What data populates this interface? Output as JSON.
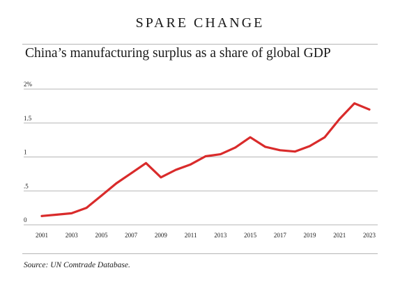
{
  "header": {
    "kicker": "SPARE CHANGE",
    "title": "China’s manufacturing surplus as a share of global GDP"
  },
  "footer": {
    "source": "Source: UN Comtrade Database."
  },
  "colors": {
    "line": "#d92b2b",
    "grid": "#b5b5b5",
    "text": "#1a1a1a"
  },
  "chart_data": {
    "type": "line",
    "title": "China’s manufacturing surplus as a share of global GDP",
    "xlabel": "",
    "ylabel": "",
    "x": [
      2001,
      2002,
      2003,
      2004,
      2005,
      2006,
      2007,
      2008,
      2009,
      2010,
      2011,
      2012,
      2013,
      2014,
      2015,
      2016,
      2017,
      2018,
      2019,
      2020,
      2021,
      2022,
      2023
    ],
    "series": [
      {
        "values": [
          0.13,
          0.15,
          0.17,
          0.25,
          0.43,
          0.61,
          0.76,
          0.91,
          0.7,
          0.81,
          0.89,
          1.01,
          1.04,
          1.14,
          1.29,
          1.15,
          1.1,
          1.08,
          1.16,
          1.29,
          1.56,
          1.79,
          1.7
        ]
      }
    ],
    "xlim": [
      2001,
      2023
    ],
    "ylim": [
      0,
      2
    ],
    "yticks": [
      0,
      0.5,
      1,
      1.5,
      2
    ],
    "ytick_labels": [
      "0",
      ".5",
      "1",
      "1.5",
      "2%"
    ],
    "xticks": [
      2001,
      2003,
      2005,
      2007,
      2009,
      2011,
      2013,
      2015,
      2017,
      2019,
      2021,
      2023
    ],
    "xtick_labels": [
      "2001",
      "2003",
      "2005",
      "2007",
      "2009",
      "2011",
      "2013",
      "2015",
      "2017",
      "2019",
      "2021",
      "2023"
    ],
    "grid": true,
    "legend": "none"
  }
}
